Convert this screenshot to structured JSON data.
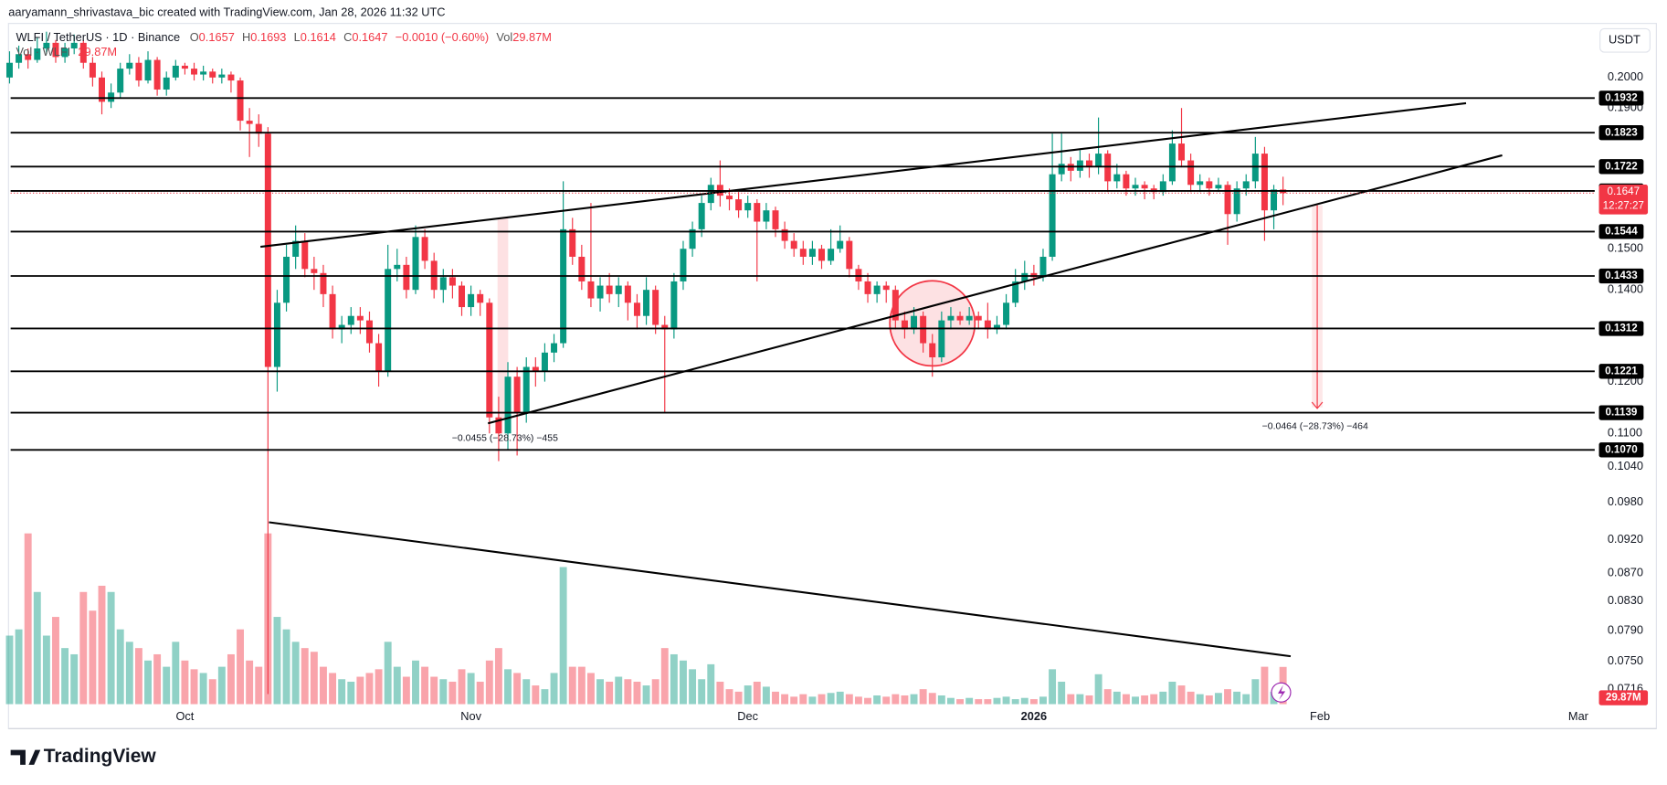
{
  "header": "aaryamann_shrivastava_bic created with TradingView.com, Jan 28, 2026 11:32 UTC",
  "brand": "TradingView",
  "chart_data": {
    "type": "candlestick",
    "symbol": "WLFI / TetherUS · 1D · Binance",
    "currency": "USDT",
    "legend_labels": [
      "O",
      "H",
      "L",
      "C"
    ],
    "change": "−0.0010 (−0.60%)",
    "volume_name": "Vol",
    "volume_title": "Vol · WLFI",
    "volume_label": "29.87M",
    "countdown": "12:27:27",
    "measure_labels": [
      "−0.0455 (−28.73%) −455",
      "−0.0464 (−28.73%) −464"
    ],
    "log_scale": true,
    "grid": false,
    "up_color": "#089981",
    "down_color": "#f23645",
    "ylim": [
      0.067,
      0.2278
    ],
    "yticks": [
      {
        "value": 0.2,
        "label": "0.2000"
      },
      {
        "value": 0.19,
        "label": "0.1900"
      },
      {
        "value": 0.15,
        "label": "0.1500"
      },
      {
        "value": 0.14,
        "label": "0.1400"
      },
      {
        "value": 0.12,
        "label": "0.1200"
      },
      {
        "value": 0.11,
        "label": "0.1100"
      },
      {
        "value": 0.104,
        "label": "0.1040"
      },
      {
        "value": 0.098,
        "label": "0.0980"
      },
      {
        "value": 0.092,
        "label": "0.0920"
      },
      {
        "value": 0.087,
        "label": "0.0870"
      },
      {
        "value": 0.083,
        "label": "0.0830"
      },
      {
        "value": 0.079,
        "label": "0.0790"
      },
      {
        "value": 0.075,
        "label": "0.0750"
      },
      0.0716
    ],
    "xticks": [
      {
        "value": 19,
        "label": "Oct"
      },
      {
        "value": 50,
        "label": "Nov"
      },
      {
        "value": 80,
        "label": "Dec"
      },
      {
        "value": 111,
        "label": "2026"
      },
      {
        "value": 142,
        "label": "Feb"
      },
      {
        "value": 170,
        "label": "Mar"
      }
    ],
    "levels": [
      0.1932,
      0.1823,
      0.1722,
      0.1653,
      0.1544,
      0.1433,
      0.1312,
      0.1221,
      0.1139,
      {
        "value": 0.107,
        "label": "0.1070"
      }
    ],
    "ohlc": [
      [
        0.2,
        0.209,
        0.198,
        0.205
      ],
      [
        0.205,
        0.211,
        0.203,
        0.208
      ],
      [
        0.208,
        0.21,
        0.203,
        0.206
      ],
      [
        0.206,
        0.214,
        0.205,
        0.21
      ],
      [
        0.21,
        0.216,
        0.208,
        0.212
      ],
      [
        0.212,
        0.213,
        0.205,
        0.207
      ],
      [
        0.207,
        0.212,
        0.205,
        0.21
      ],
      [
        0.21,
        0.215,
        0.208,
        0.212
      ],
      [
        0.212,
        0.213,
        0.203,
        0.205
      ],
      [
        0.205,
        0.207,
        0.197,
        0.2
      ],
      [
        0.2,
        0.202,
        0.188,
        0.192
      ],
      [
        0.192,
        0.198,
        0.19,
        0.195
      ],
      [
        0.195,
        0.205,
        0.193,
        0.203
      ],
      [
        0.203,
        0.208,
        0.201,
        0.205
      ],
      [
        0.205,
        0.207,
        0.197,
        0.199
      ],
      [
        0.199,
        0.209,
        0.198,
        0.206
      ],
      [
        0.206,
        0.207,
        0.194,
        0.196
      ],
      [
        0.196,
        0.202,
        0.194,
        0.2
      ],
      [
        0.2,
        0.206,
        0.199,
        0.204
      ],
      [
        0.204,
        0.205,
        0.201,
        0.203
      ],
      [
        0.203,
        0.205,
        0.199,
        0.201
      ],
      [
        0.201,
        0.204,
        0.199,
        0.202
      ],
      [
        0.202,
        0.203,
        0.198,
        0.2
      ],
      [
        0.2,
        0.203,
        0.198,
        0.201
      ],
      [
        0.201,
        0.202,
        0.195,
        0.199
      ],
      [
        0.199,
        0.2,
        0.183,
        0.186
      ],
      [
        0.186,
        0.19,
        0.175,
        0.185
      ],
      [
        0.185,
        0.188,
        0.178,
        0.182
      ],
      [
        0.182,
        0.184,
        0.071,
        0.123
      ],
      [
        0.123,
        0.14,
        0.118,
        0.137
      ],
      [
        0.137,
        0.151,
        0.135,
        0.148
      ],
      [
        0.148,
        0.156,
        0.145,
        0.152
      ],
      [
        0.152,
        0.154,
        0.143,
        0.145
      ],
      [
        0.145,
        0.148,
        0.14,
        0.144
      ],
      [
        0.144,
        0.146,
        0.136,
        0.139
      ],
      [
        0.139,
        0.141,
        0.129,
        0.131
      ],
      [
        0.131,
        0.134,
        0.128,
        0.132
      ],
      [
        0.132,
        0.136,
        0.13,
        0.134
      ],
      [
        0.134,
        0.136,
        0.13,
        0.133
      ],
      [
        0.133,
        0.135,
        0.126,
        0.128
      ],
      [
        0.128,
        0.13,
        0.119,
        0.122
      ],
      [
        0.122,
        0.151,
        0.121,
        0.145
      ],
      [
        0.145,
        0.15,
        0.142,
        0.146
      ],
      [
        0.146,
        0.148,
        0.138,
        0.14
      ],
      [
        0.14,
        0.156,
        0.139,
        0.153
      ],
      [
        0.153,
        0.155,
        0.145,
        0.147
      ],
      [
        0.147,
        0.149,
        0.138,
        0.14
      ],
      [
        0.14,
        0.145,
        0.137,
        0.143
      ],
      [
        0.143,
        0.145,
        0.138,
        0.141
      ],
      [
        0.141,
        0.142,
        0.134,
        0.136
      ],
      [
        0.136,
        0.141,
        0.134,
        0.139
      ],
      [
        0.139,
        0.14,
        0.134,
        0.137
      ],
      [
        0.137,
        0.138,
        0.11,
        0.113
      ],
      [
        0.113,
        0.117,
        0.105,
        0.11
      ],
      [
        0.11,
        0.124,
        0.107,
        0.121
      ],
      [
        0.121,
        0.123,
        0.106,
        0.114
      ],
      [
        0.114,
        0.125,
        0.112,
        0.123
      ],
      [
        0.123,
        0.125,
        0.119,
        0.122
      ],
      [
        0.122,
        0.128,
        0.12,
        0.126
      ],
      [
        0.126,
        0.13,
        0.124,
        0.128
      ],
      [
        0.128,
        0.168,
        0.127,
        0.155
      ],
      [
        0.155,
        0.158,
        0.146,
        0.148
      ],
      [
        0.148,
        0.151,
        0.14,
        0.142
      ],
      [
        0.142,
        0.162,
        0.136,
        0.138
      ],
      [
        0.138,
        0.143,
        0.135,
        0.141
      ],
      [
        0.141,
        0.144,
        0.137,
        0.139
      ],
      [
        0.139,
        0.143,
        0.136,
        0.141
      ],
      [
        0.141,
        0.142,
        0.133,
        0.137
      ],
      [
        0.137,
        0.139,
        0.131,
        0.134
      ],
      [
        0.134,
        0.143,
        0.132,
        0.14
      ],
      [
        0.14,
        0.141,
        0.13,
        0.132
      ],
      [
        0.132,
        0.134,
        0.114,
        0.131
      ],
      [
        0.131,
        0.144,
        0.129,
        0.142
      ],
      [
        0.142,
        0.152,
        0.14,
        0.15
      ],
      [
        0.15,
        0.157,
        0.148,
        0.155
      ],
      [
        0.155,
        0.164,
        0.153,
        0.162
      ],
      [
        0.162,
        0.169,
        0.16,
        0.167
      ],
      [
        0.167,
        0.174,
        0.161,
        0.164
      ],
      [
        0.164,
        0.166,
        0.16,
        0.163
      ],
      [
        0.163,
        0.165,
        0.158,
        0.16
      ],
      [
        0.16,
        0.164,
        0.158,
        0.162
      ],
      [
        0.162,
        0.163,
        0.142,
        0.157
      ],
      [
        0.157,
        0.162,
        0.155,
        0.16
      ],
      [
        0.16,
        0.161,
        0.153,
        0.155
      ],
      [
        0.155,
        0.157,
        0.15,
        0.152
      ],
      [
        0.152,
        0.154,
        0.148,
        0.15
      ],
      [
        0.15,
        0.152,
        0.146,
        0.148
      ],
      [
        0.148,
        0.152,
        0.146,
        0.15
      ],
      [
        0.15,
        0.151,
        0.145,
        0.147
      ],
      [
        0.147,
        0.155,
        0.146,
        0.15
      ],
      [
        0.15,
        0.156,
        0.149,
        0.152
      ],
      [
        0.152,
        0.153,
        0.143,
        0.145
      ],
      [
        0.145,
        0.146,
        0.14,
        0.142
      ],
      [
        0.142,
        0.144,
        0.137,
        0.139
      ],
      [
        0.139,
        0.142,
        0.137,
        0.141
      ],
      [
        0.141,
        0.142,
        0.137,
        0.14
      ],
      [
        0.14,
        0.141,
        0.131,
        0.133
      ],
      [
        0.133,
        0.135,
        0.129,
        0.131
      ],
      [
        0.131,
        0.136,
        0.13,
        0.134
      ],
      [
        0.134,
        0.135,
        0.126,
        0.128
      ],
      [
        0.128,
        0.13,
        0.121,
        0.125
      ],
      [
        0.125,
        0.135,
        0.124,
        0.133
      ],
      [
        0.133,
        0.136,
        0.131,
        0.134
      ],
      [
        0.134,
        0.135,
        0.132,
        0.133
      ],
      [
        0.133,
        0.136,
        0.132,
        0.134
      ],
      [
        0.134,
        0.135,
        0.131,
        0.133
      ],
      [
        0.133,
        0.137,
        0.129,
        0.131
      ],
      [
        0.131,
        0.134,
        0.13,
        0.132
      ],
      [
        0.132,
        0.139,
        0.131,
        0.137
      ],
      [
        0.137,
        0.145,
        0.136,
        0.142
      ],
      [
        0.142,
        0.147,
        0.14,
        0.144
      ],
      [
        0.144,
        0.146,
        0.141,
        0.143
      ],
      [
        0.143,
        0.15,
        0.142,
        0.148
      ],
      [
        0.148,
        0.182,
        0.147,
        0.17
      ],
      [
        0.17,
        0.182,
        0.168,
        0.173
      ],
      [
        0.173,
        0.175,
        0.168,
        0.171
      ],
      [
        0.171,
        0.177,
        0.169,
        0.174
      ],
      [
        0.174,
        0.176,
        0.169,
        0.172
      ],
      [
        0.172,
        0.187,
        0.17,
        0.176
      ],
      [
        0.176,
        0.177,
        0.165,
        0.168
      ],
      [
        0.168,
        0.173,
        0.166,
        0.17
      ],
      [
        0.17,
        0.171,
        0.164,
        0.166
      ],
      [
        0.166,
        0.169,
        0.164,
        0.167
      ],
      [
        0.167,
        0.168,
        0.163,
        0.166
      ],
      [
        0.166,
        0.167,
        0.163,
        0.165
      ],
      [
        0.165,
        0.17,
        0.164,
        0.168
      ],
      [
        0.168,
        0.183,
        0.167,
        0.179
      ],
      [
        0.179,
        0.19,
        0.172,
        0.174
      ],
      [
        0.174,
        0.176,
        0.165,
        0.167
      ],
      [
        0.167,
        0.17,
        0.165,
        0.168
      ],
      [
        0.168,
        0.169,
        0.164,
        0.166
      ],
      [
        0.166,
        0.169,
        0.165,
        0.167
      ],
      [
        0.167,
        0.168,
        0.151,
        0.159
      ],
      [
        0.159,
        0.168,
        0.157,
        0.166
      ],
      [
        0.166,
        0.17,
        0.164,
        0.168
      ],
      [
        0.168,
        0.181,
        0.166,
        0.176
      ],
      [
        0.176,
        0.178,
        0.152,
        0.16
      ],
      [
        0.16,
        0.167,
        0.155,
        0.1657
      ],
      [
        0.1657,
        0.1693,
        0.1614,
        0.1647
      ]
    ],
    "volume": [
      55,
      60,
      137,
      90,
      55,
      70,
      45,
      40,
      90,
      75,
      95,
      90,
      60,
      50,
      45,
      35,
      40,
      30,
      50,
      35,
      28,
      25,
      20,
      30,
      40,
      60,
      35,
      30,
      137,
      70,
      60,
      50,
      45,
      42,
      30,
      25,
      20,
      18,
      22,
      25,
      28,
      50,
      30,
      22,
      35,
      30,
      22,
      20,
      18,
      28,
      25,
      18,
      35,
      45,
      28,
      25,
      20,
      15,
      12,
      25,
      110,
      30,
      30,
      25,
      20,
      18,
      22,
      20,
      18,
      15,
      20,
      45,
      40,
      35,
      28,
      20,
      32,
      18,
      12,
      10,
      15,
      18,
      14,
      10,
      8,
      6,
      8,
      6,
      8,
      9,
      10,
      8,
      6,
      5,
      7,
      6,
      8,
      7,
      8,
      12,
      9,
      7,
      5,
      4,
      5,
      4,
      4,
      5,
      6,
      4,
      5,
      4,
      6,
      28,
      18,
      8,
      8,
      7,
      24,
      12,
      10,
      8,
      6,
      7,
      8,
      10,
      18,
      15,
      10,
      8,
      7,
      9,
      12,
      10,
      8,
      20,
      30,
      10,
      29.87
    ]
  }
}
